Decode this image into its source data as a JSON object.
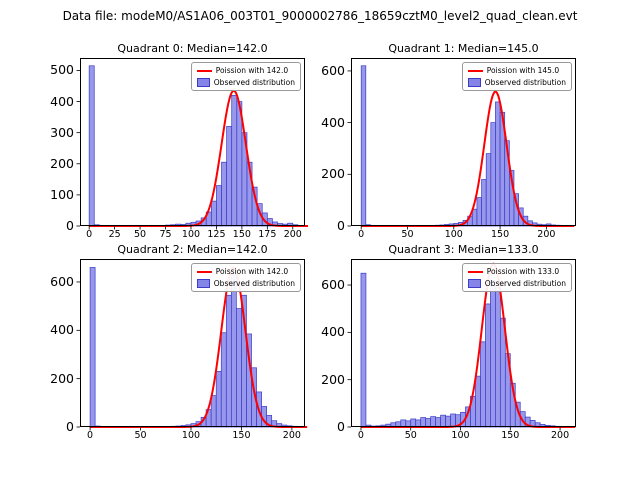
{
  "figure": {
    "title": "Data file: modeM0/AS1A06_003T01_9000002786_18659cztM0_level2_quad_clean.evt"
  },
  "colors": {
    "bar_fill": "#8585e8",
    "bar_edge": "#3c3cc8",
    "fit_line": "#ff0000",
    "axis": "#000000"
  },
  "chart_data": {
    "type": "bar",
    "layout": "2x2 grid of histograms with Poisson fit overlay",
    "title": "Data file: modeM0/AS1A06_003T01_9000002786_18659cztM0_level2_quad_clean.evt",
    "xlabel": "",
    "ylabel": "",
    "grid": false,
    "legend_position": "upper right",
    "subplots": [
      {
        "title": "Quadrant 0: Median=142.0",
        "median": 142.0,
        "legend": {
          "fit_label": "Poission with 142.0",
          "hist_label": "Observed distribution"
        },
        "xlim": [
          -9,
          212
        ],
        "ylim": [
          0,
          540
        ],
        "xticks": [
          0,
          25,
          50,
          75,
          100,
          125,
          150,
          175,
          200
        ],
        "yticks": [
          0,
          100,
          200,
          300,
          400,
          500
        ],
        "bins": {
          "start": 0,
          "width": 5,
          "counts": [
            515,
            4,
            2,
            1,
            0,
            1,
            0,
            1,
            0,
            1,
            0,
            1,
            1,
            1,
            2,
            3,
            4,
            6,
            5,
            9,
            12,
            16,
            26,
            45,
            80,
            130,
            205,
            320,
            420,
            400,
            300,
            205,
            125,
            72,
            42,
            24,
            13,
            8,
            6,
            9,
            4,
            2,
            0
          ]
        },
        "fit": {
          "type": "poisson",
          "lambda": 142.0,
          "amplitude": 435
        }
      },
      {
        "title": "Quadrant 1: Median=145.0",
        "median": 145.0,
        "legend": {
          "fit_label": "Poission with 145.0",
          "hist_label": "Observed distribution"
        },
        "xlim": [
          -11,
          232
        ],
        "ylim": [
          0,
          650
        ],
        "xticks": [
          0,
          50,
          100,
          150,
          200
        ],
        "yticks": [
          0,
          200,
          400,
          600
        ],
        "bins": {
          "start": 0,
          "width": 5,
          "counts": [
            620,
            5,
            2,
            1,
            1,
            0,
            1,
            0,
            1,
            0,
            1,
            1,
            1,
            1,
            2,
            2,
            3,
            4,
            6,
            8,
            10,
            14,
            22,
            38,
            65,
            110,
            180,
            280,
            400,
            480,
            440,
            330,
            215,
            125,
            70,
            38,
            20,
            12,
            7,
            5,
            8,
            4,
            3,
            2,
            1,
            1
          ]
        },
        "fit": {
          "type": "poisson",
          "lambda": 145.0,
          "amplitude": 520
        }
      },
      {
        "title": "Quadrant 2: Median=142.0",
        "median": 142.0,
        "legend": {
          "fit_label": "Poission with 142.0",
          "hist_label": "Observed distribution"
        },
        "xlim": [
          -10,
          213
        ],
        "ylim": [
          0,
          695
        ],
        "xticks": [
          0,
          50,
          100,
          150,
          200
        ],
        "yticks": [
          0,
          200,
          400,
          600
        ],
        "bins": {
          "start": 0,
          "width": 5,
          "counts": [
            660,
            4,
            2,
            1,
            1,
            1,
            0,
            1,
            0,
            1,
            1,
            0,
            1,
            1,
            1,
            2,
            3,
            4,
            6,
            9,
            14,
            22,
            40,
            72,
            130,
            230,
            390,
            545,
            630,
            490,
            545,
            385,
            245,
            145,
            85,
            48,
            26,
            14,
            8,
            5,
            3,
            2,
            1
          ]
        },
        "fit": {
          "type": "poisson",
          "lambda": 142.0,
          "amplitude": 660
        }
      },
      {
        "title": "Quadrant 3: Median=133.0",
        "median": 133.0,
        "legend": {
          "fit_label": "Poission with 133.0",
          "hist_label": "Observed distribution"
        },
        "xlim": [
          -10,
          216
        ],
        "ylim": [
          0,
          710
        ],
        "xticks": [
          0,
          50,
          100,
          150,
          200
        ],
        "yticks": [
          0,
          200,
          400,
          600
        ],
        "bins": {
          "start": 0,
          "width": 5,
          "counts": [
            650,
            8,
            4,
            5,
            8,
            12,
            18,
            22,
            30,
            26,
            34,
            30,
            40,
            36,
            44,
            40,
            50,
            46,
            55,
            52,
            62,
            85,
            130,
            215,
            360,
            520,
            620,
            590,
            460,
            310,
            185,
            105,
            65,
            42,
            28,
            18,
            11,
            7,
            5,
            3,
            2,
            2,
            1
          ]
        },
        "fit": {
          "type": "poisson",
          "lambda": 133.0,
          "amplitude": 690
        }
      }
    ]
  }
}
